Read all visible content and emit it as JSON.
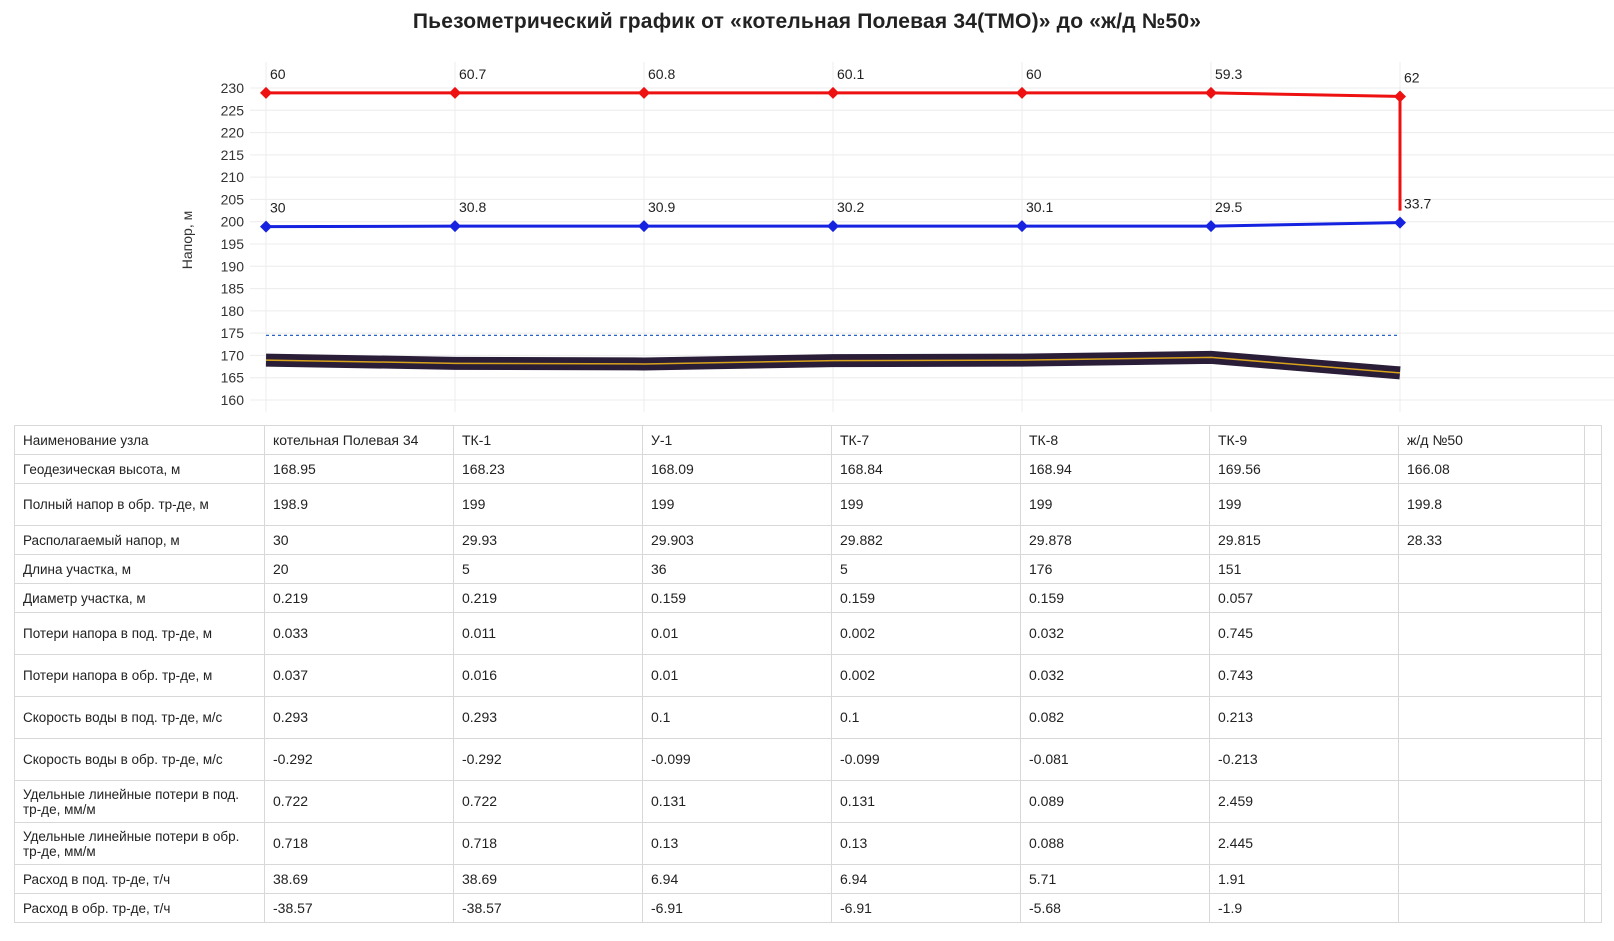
{
  "chart_data": {
    "type": "line",
    "title": "Пьезометрический график от «котельная Полевая 34(ТМО)» до «ж/д №50»",
    "ylabel": "Напор, м",
    "ylim": [
      160,
      230
    ],
    "yticks": [
      160,
      165,
      170,
      175,
      180,
      185,
      190,
      195,
      200,
      205,
      210,
      215,
      220,
      225,
      230
    ],
    "categories": [
      "котельная Полевая 34",
      "ТК-1",
      "У-1",
      "ТК-7",
      "ТК-8",
      "ТК-9",
      "ж/д №50"
    ],
    "series": [
      {
        "color": "#ee1111",
        "values": [
          228.9,
          228.9,
          228.9,
          228.9,
          228.9,
          228.9,
          228.1
        ],
        "labels": [
          "60",
          "60.7",
          "60.8",
          "60.1",
          "60",
          "59.3",
          "62"
        ]
      },
      {
        "color": "#1522e0",
        "values": [
          198.9,
          199,
          199,
          199,
          199,
          199,
          199.8
        ],
        "labels": [
          "30",
          "30.8",
          "30.9",
          "30.2",
          "30.1",
          "29.5",
          "33.7"
        ]
      },
      {
        "color": "#2a1d38",
        "values": [
          168.95,
          168.23,
          168.09,
          168.84,
          168.94,
          169.56,
          166.08
        ]
      }
    ],
    "reference_line": {
      "value": 174.5,
      "color": "#2b62c9"
    },
    "grid": true
  },
  "table": {
    "rows": [
      {
        "header": "Наименование узла",
        "cells": [
          "котельная Полевая 34",
          "ТК-1",
          "У-1",
          "ТК-7",
          "ТК-8",
          "ТК-9",
          "ж/д №50"
        ]
      },
      {
        "header": "Геодезическая высота, м",
        "cells": [
          "168.95",
          "168.23",
          "168.09",
          "168.84",
          "168.94",
          "169.56",
          "166.08"
        ]
      },
      {
        "header": "Полный напор в обр. тр-де, м",
        "cells": [
          "198.9",
          "199",
          "199",
          "199",
          "199",
          "199",
          "199.8"
        ]
      },
      {
        "header": "Располагаемый напор, м",
        "cells": [
          "30",
          "29.93",
          "29.903",
          "29.882",
          "29.878",
          "29.815",
          "28.33"
        ]
      },
      {
        "header": "Длина участка, м",
        "cells": [
          "20",
          "5",
          "36",
          "5",
          "176",
          "151",
          ""
        ]
      },
      {
        "header": "Диаметр участка, м",
        "cells": [
          "0.219",
          "0.219",
          "0.159",
          "0.159",
          "0.159",
          "0.057",
          ""
        ]
      },
      {
        "header": "Потери напора в под. тр-де, м",
        "cells": [
          "0.033",
          "0.011",
          "0.01",
          "0.002",
          "0.032",
          "0.745",
          ""
        ]
      },
      {
        "header": "Потери напора в обр. тр-де, м",
        "cells": [
          "0.037",
          "0.016",
          "0.01",
          "0.002",
          "0.032",
          "0.743",
          ""
        ]
      },
      {
        "header": "Скорость воды в под. тр-де, м/с",
        "cells": [
          "0.293",
          "0.293",
          "0.1",
          "0.1",
          "0.082",
          "0.213",
          ""
        ]
      },
      {
        "header": "Скорость воды в обр. тр-де, м/с",
        "cells": [
          "-0.292",
          "-0.292",
          "-0.099",
          "-0.099",
          "-0.081",
          "-0.213",
          ""
        ]
      },
      {
        "header": "Удельные линейные потери в под. тр-де, мм/м",
        "cells": [
          "0.722",
          "0.722",
          "0.131",
          "0.131",
          "0.089",
          "2.459",
          ""
        ]
      },
      {
        "header": "Удельные линейные потери в обр. тр-де, мм/м",
        "cells": [
          "0.718",
          "0.718",
          "0.13",
          "0.13",
          "0.088",
          "2.445",
          ""
        ]
      },
      {
        "header": "Расход в под. тр-де, т/ч",
        "cells": [
          "38.69",
          "38.69",
          "6.94",
          "6.94",
          "5.71",
          "1.91",
          ""
        ]
      },
      {
        "header": "Расход в обр. тр-де, т/ч",
        "cells": [
          "-38.57",
          "-38.57",
          "-6.91",
          "-6.91",
          "-5.68",
          "-1.9",
          ""
        ]
      }
    ]
  }
}
